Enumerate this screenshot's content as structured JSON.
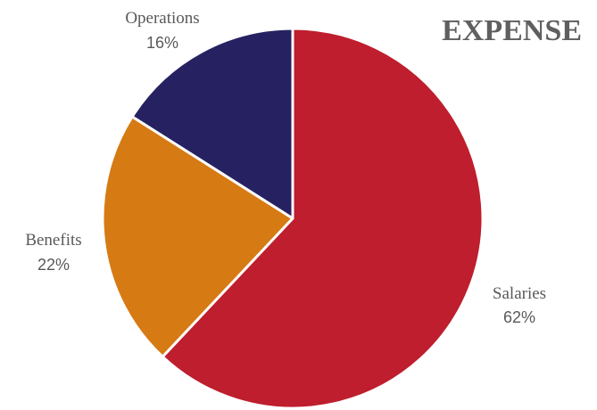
{
  "chart_data": {
    "type": "pie",
    "title": "EXPENSE",
    "slices": [
      {
        "label": "Salaries",
        "value": 62,
        "display": "62%",
        "color": "#be1e2d"
      },
      {
        "label": "Benefits",
        "value": 22,
        "display": "22%",
        "color": "#d67a14"
      },
      {
        "label": "Operations",
        "value": 16,
        "display": "16%",
        "color": "#262262"
      }
    ],
    "start_angle_deg": 0,
    "direction": "clockwise",
    "label_position": "outside"
  }
}
